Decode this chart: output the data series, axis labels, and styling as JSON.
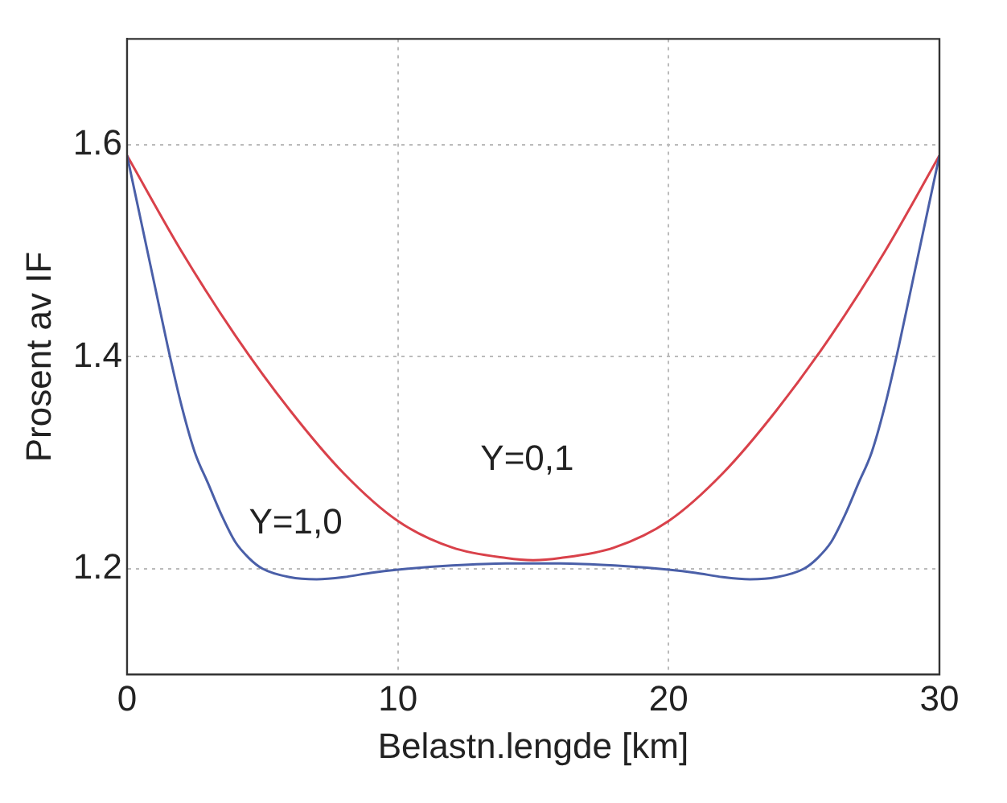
{
  "chart_data": {
    "type": "line",
    "xlabel": "Belastn.lengde [km]",
    "ylabel": "Prosent av IF",
    "xlim": [
      0,
      30
    ],
    "xticks": [
      0,
      10,
      20,
      30
    ],
    "ylim": [
      1.1,
      1.7
    ],
    "yticks": [
      1.2,
      1.4,
      1.6
    ],
    "grid": true,
    "legend": false,
    "marker": "none",
    "line_style": "solid",
    "series": [
      {
        "name": "Y=1,0",
        "color": "#4a5fa8",
        "x": [
          0,
          0.5,
          1,
          1.5,
          2,
          2.5,
          3,
          3.5,
          4,
          4.5,
          5,
          6,
          7,
          8,
          9,
          10,
          12,
          14,
          15,
          16,
          18,
          20,
          21,
          22,
          23,
          24,
          25,
          25.5,
          26,
          26.5,
          27,
          27.5,
          28,
          28.5,
          29,
          29.5,
          30
        ],
        "values": [
          1.59,
          1.53,
          1.47,
          1.41,
          1.355,
          1.31,
          1.28,
          1.25,
          1.225,
          1.21,
          1.2,
          1.192,
          1.19,
          1.192,
          1.196,
          1.199,
          1.203,
          1.205,
          1.205,
          1.205,
          1.203,
          1.199,
          1.196,
          1.192,
          1.19,
          1.192,
          1.2,
          1.21,
          1.225,
          1.25,
          1.28,
          1.31,
          1.355,
          1.41,
          1.47,
          1.53,
          1.59
        ]
      },
      {
        "name": "Y=0,1",
        "color": "#d9414a",
        "x": [
          0,
          2,
          4,
          6,
          8,
          10,
          12,
          14,
          15,
          16,
          18,
          20,
          22,
          24,
          26,
          28,
          30
        ],
        "values": [
          1.59,
          1.5,
          1.42,
          1.35,
          1.29,
          1.245,
          1.22,
          1.21,
          1.208,
          1.21,
          1.22,
          1.245,
          1.29,
          1.35,
          1.42,
          1.5,
          1.59
        ]
      }
    ]
  }
}
